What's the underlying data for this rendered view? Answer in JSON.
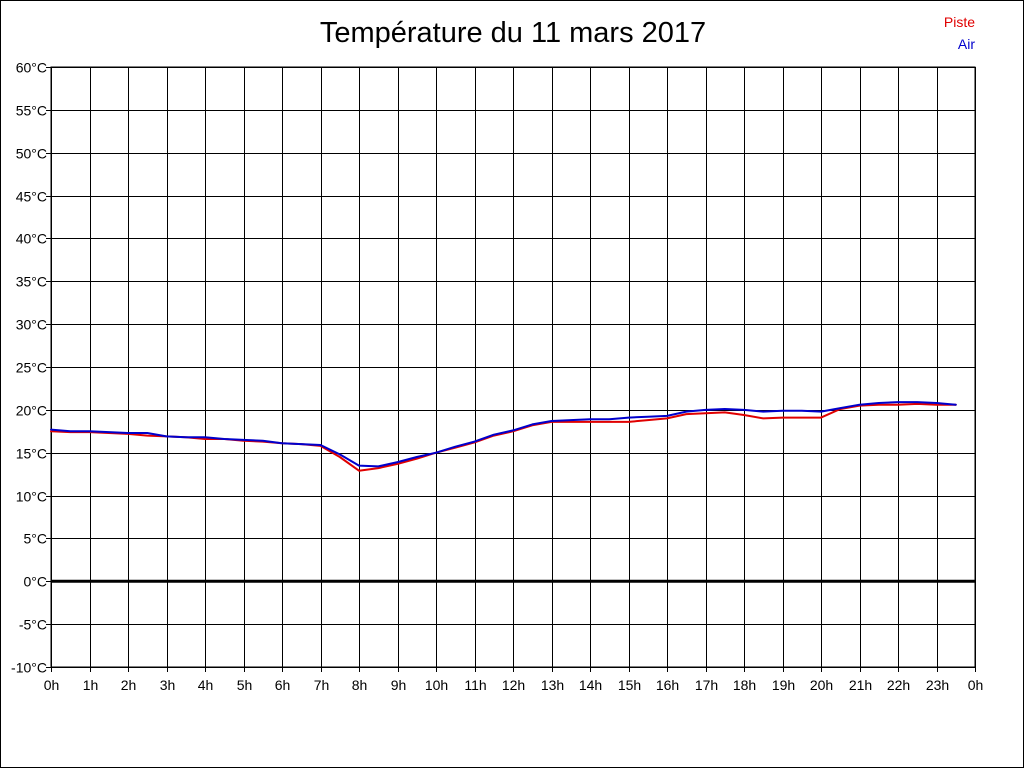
{
  "chart_data": {
    "type": "line",
    "title": "Température du 11 mars 2017",
    "xlabel": "",
    "ylabel": "",
    "xlim": [
      0,
      24
    ],
    "ylim": [
      -10,
      60
    ],
    "grid": true,
    "legend_position": "top-right",
    "x_tick_labels": [
      "0h",
      "1h",
      "2h",
      "3h",
      "4h",
      "5h",
      "6h",
      "7h",
      "8h",
      "9h",
      "10h",
      "11h",
      "12h",
      "13h",
      "14h",
      "15h",
      "16h",
      "17h",
      "18h",
      "19h",
      "20h",
      "21h",
      "22h",
      "23h",
      "0h"
    ],
    "y_ticks": [
      -10,
      -5,
      0,
      5,
      10,
      15,
      20,
      25,
      30,
      35,
      40,
      45,
      50,
      55,
      60
    ],
    "y_tick_labels": [
      "-10°C",
      "-5°C",
      "0°C",
      "5°C",
      "10°C",
      "15°C",
      "20°C",
      "25°C",
      "30°C",
      "35°C",
      "40°C",
      "45°C",
      "50°C",
      "55°C",
      "60°C"
    ],
    "zero_line": 0,
    "series": [
      {
        "name": "Piste",
        "color": "#e00000",
        "x": [
          0,
          0.5,
          1,
          1.5,
          2,
          2.5,
          3,
          3.5,
          4,
          4.5,
          5,
          5.5,
          6,
          6.5,
          7,
          7.5,
          8,
          8.5,
          9,
          9.5,
          10,
          10.5,
          11,
          11.5,
          12,
          12.5,
          13,
          13.5,
          14,
          14.5,
          15,
          15.5,
          16,
          16.5,
          17,
          17.5,
          18,
          18.5,
          19,
          19.5,
          20,
          20.5,
          21,
          21.5,
          22,
          22.5,
          23,
          23.5
        ],
        "values": [
          17.5,
          17.4,
          17.4,
          17.3,
          17.2,
          17.0,
          16.9,
          16.8,
          16.6,
          16.6,
          16.4,
          16.3,
          16.1,
          16.0,
          15.8,
          14.5,
          12.9,
          13.2,
          13.7,
          14.3,
          15.0,
          15.6,
          16.2,
          17.0,
          17.5,
          18.2,
          18.6,
          18.6,
          18.6,
          18.6,
          18.6,
          18.8,
          19.0,
          19.5,
          19.6,
          19.7,
          19.4,
          19.0,
          19.1,
          19.1,
          19.1,
          20.1,
          20.5,
          20.6,
          20.6,
          20.7,
          20.6,
          20.6
        ]
      },
      {
        "name": "Air",
        "color": "#0000cc",
        "x": [
          0,
          0.5,
          1,
          1.5,
          2,
          2.5,
          3,
          3.5,
          4,
          4.5,
          5,
          5.5,
          6,
          6.5,
          7,
          7.5,
          8,
          8.5,
          9,
          9.5,
          10,
          10.5,
          11,
          11.5,
          12,
          12.5,
          13,
          13.5,
          14,
          14.5,
          15,
          15.5,
          16,
          16.5,
          17,
          17.5,
          18,
          18.5,
          19,
          19.5,
          20,
          20.5,
          21,
          21.5,
          22,
          22.5,
          23,
          23.5
        ],
        "values": [
          17.7,
          17.5,
          17.5,
          17.4,
          17.3,
          17.3,
          16.9,
          16.8,
          16.8,
          16.6,
          16.5,
          16.4,
          16.1,
          16.0,
          15.9,
          14.8,
          13.5,
          13.4,
          13.9,
          14.5,
          15.0,
          15.7,
          16.3,
          17.1,
          17.6,
          18.3,
          18.7,
          18.8,
          18.9,
          18.9,
          19.1,
          19.2,
          19.3,
          19.8,
          20.0,
          20.1,
          20.0,
          19.8,
          19.9,
          19.9,
          19.8,
          20.2,
          20.6,
          20.8,
          20.9,
          20.9,
          20.8,
          20.6
        ]
      }
    ]
  }
}
